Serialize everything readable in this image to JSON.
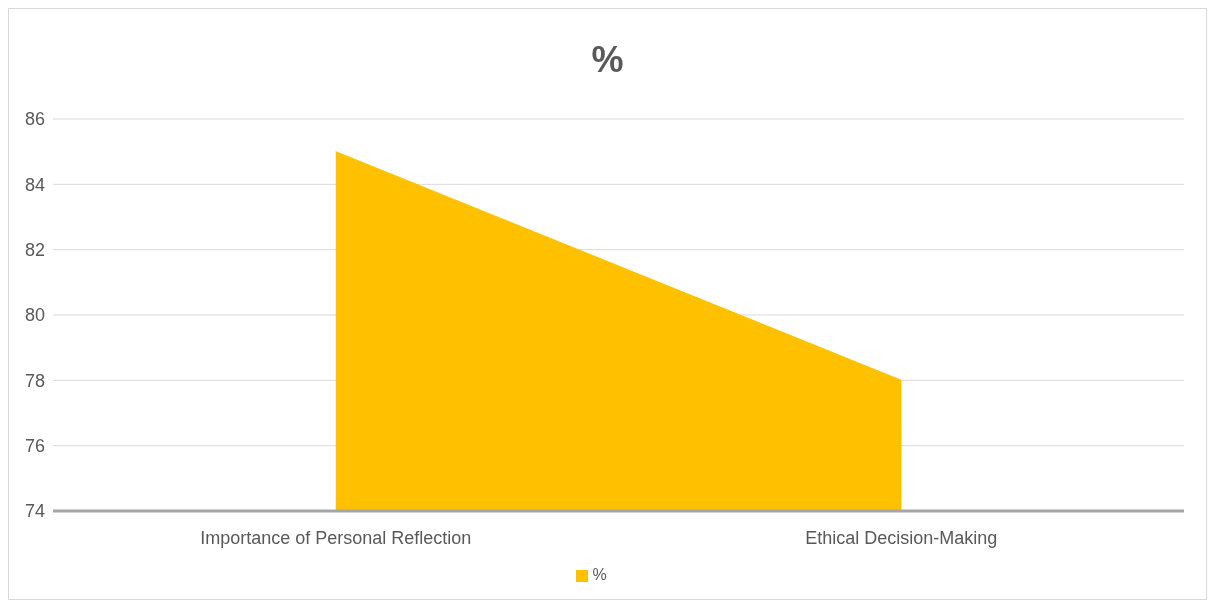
{
  "chart_data": {
    "type": "area",
    "title": "%",
    "categories": [
      "Importance of Personal Reflection",
      "Ethical Decision-Making"
    ],
    "series": [
      {
        "name": "%",
        "color": "#ffc000",
        "values": [
          85,
          78
        ]
      }
    ],
    "ylim": [
      74,
      86
    ],
    "yticks": [
      74,
      76,
      78,
      80,
      82,
      84,
      86
    ],
    "grid": "y",
    "legend": "bottom"
  }
}
